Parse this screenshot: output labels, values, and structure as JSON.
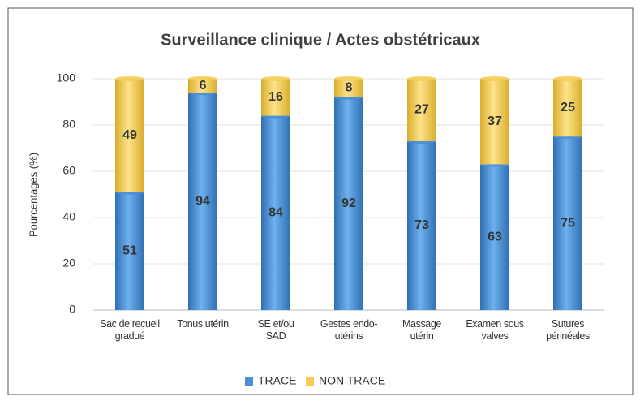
{
  "chart_data": {
    "type": "stacked_bar",
    "title": "Surveillance clinique / Actes obstétricaux",
    "ylabel": "Pourcentages (%)",
    "categories": [
      "Sac de recueil gradué",
      "Tonus utérin",
      "SE et/ou SAD",
      "Gestes endo-utérins",
      "Massage utérin",
      "Examen sous valves",
      "Sutures périnéales"
    ],
    "series": [
      {
        "name": "TRACE",
        "color": "#4a8fd6",
        "values": [
          51,
          94,
          84,
          92,
          73,
          63,
          75
        ]
      },
      {
        "name": "NON TRACE",
        "color": "#f3cd55",
        "values": [
          49,
          6,
          16,
          8,
          27,
          37,
          25
        ]
      }
    ],
    "ylim": [
      0,
      100
    ],
    "yticks": [
      0,
      20,
      40,
      60,
      80,
      100
    ],
    "grid": true,
    "legend": "bottom"
  }
}
